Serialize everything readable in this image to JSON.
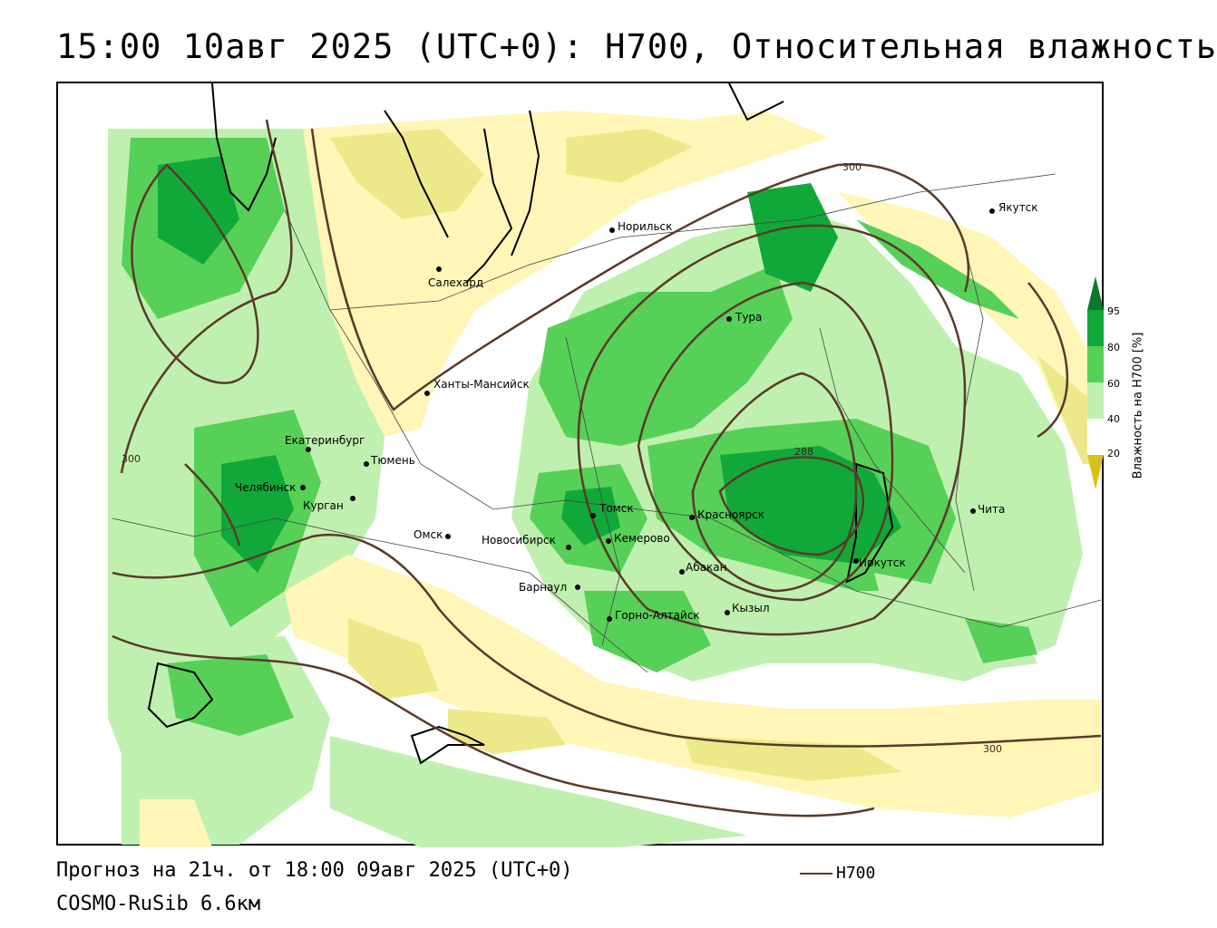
{
  "title": "15:00 10авг 2025 (UTC+0): H700, Относительная влажность",
  "footer": {
    "forecast": "Прогноз на 21ч. от 18:00 09авг 2025 (UTC+0)",
    "model": "COSMO-RuSib 6.6км"
  },
  "legend": {
    "line_label": "H700",
    "line_color": "#5a3a2a"
  },
  "colorbar": {
    "title": "Влажность на H700 [%]",
    "ticks": [
      "95",
      "80",
      "60",
      "40",
      "20"
    ],
    "colors": {
      "very_dry": "#d6c21a",
      "dry": "#ece98a",
      "semi_dry": "#fff6b8",
      "neutral": "#ffffff",
      "moist": "#bff0b0",
      "wet": "#57d058",
      "very_wet": "#11a83a",
      "saturated": "#0b7a2b"
    }
  },
  "contours": {
    "labels": [
      "300",
      "300",
      "288",
      "300"
    ]
  },
  "cities": [
    {
      "name": "Якутск"
    },
    {
      "name": "Норильск"
    },
    {
      "name": "Салехард"
    },
    {
      "name": "Тура"
    },
    {
      "name": "Ханты-Мансийск"
    },
    {
      "name": "Екатеринбург"
    },
    {
      "name": "Тюмень"
    },
    {
      "name": "Челябинск"
    },
    {
      "name": "Курган"
    },
    {
      "name": "Омск"
    },
    {
      "name": "Новосибирск"
    },
    {
      "name": "Томск"
    },
    {
      "name": "Кемерово"
    },
    {
      "name": "Красноярск"
    },
    {
      "name": "Барнаул"
    },
    {
      "name": "Абакан"
    },
    {
      "name": "Иркутск"
    },
    {
      "name": "Чита"
    },
    {
      "name": "Кызыл"
    },
    {
      "name": "Горно-Алтайск"
    }
  ]
}
